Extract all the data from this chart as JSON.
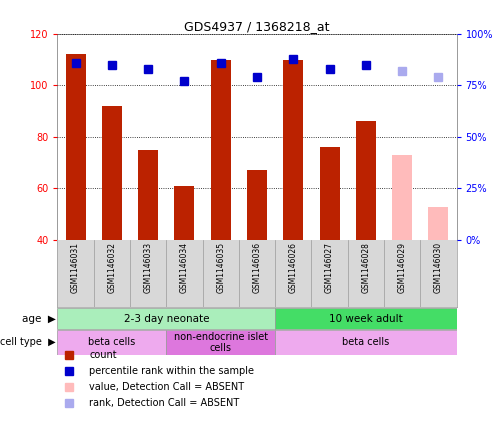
{
  "title": "GDS4937 / 1368218_at",
  "samples": [
    "GSM1146031",
    "GSM1146032",
    "GSM1146033",
    "GSM1146034",
    "GSM1146035",
    "GSM1146036",
    "GSM1146026",
    "GSM1146027",
    "GSM1146028",
    "GSM1146029",
    "GSM1146030"
  ],
  "bar_values": [
    112,
    92,
    75,
    61,
    110,
    67,
    110,
    76,
    86,
    null,
    null
  ],
  "bar_colors": [
    "#bb2200",
    "#bb2200",
    "#bb2200",
    "#bb2200",
    "#bb2200",
    "#bb2200",
    "#bb2200",
    "#bb2200",
    "#bb2200",
    null,
    null
  ],
  "absent_bar_values": [
    null,
    null,
    null,
    null,
    null,
    null,
    null,
    null,
    null,
    73,
    53
  ],
  "absent_bar_color": "#ffbbbb",
  "rank_values": [
    86,
    85,
    83,
    77,
    86,
    79,
    88,
    83,
    85,
    82,
    79
  ],
  "rank_colors": [
    "#0000cc",
    "#0000cc",
    "#0000cc",
    "#0000cc",
    "#0000cc",
    "#0000cc",
    "#0000cc",
    "#0000cc",
    "#0000cc",
    "#aaaaee",
    "#aaaaee"
  ],
  "ylim_left": [
    40,
    120
  ],
  "ylim_right": [
    0,
    100
  ],
  "yticks_left": [
    40,
    60,
    80,
    100,
    120
  ],
  "ytick_labels_left": [
    "40",
    "60",
    "80",
    "100",
    "120"
  ],
  "yticks_right_pct": [
    0,
    25,
    50,
    75,
    100
  ],
  "ytick_labels_right": [
    "0%",
    "25%",
    "50%",
    "75%",
    "100%"
  ],
  "age_groups": [
    {
      "label": "2-3 day neonate",
      "start": 0,
      "end": 6,
      "color": "#aaeebb"
    },
    {
      "label": "10 week adult",
      "start": 6,
      "end": 11,
      "color": "#44dd66"
    }
  ],
  "cell_type_groups": [
    {
      "label": "beta cells",
      "start": 0,
      "end": 3,
      "color": "#eeaaee"
    },
    {
      "label": "non-endocrine islet\ncells",
      "start": 3,
      "end": 6,
      "color": "#dd77dd"
    },
    {
      "label": "beta cells",
      "start": 6,
      "end": 11,
      "color": "#eeaaee"
    }
  ],
  "legend_items": [
    {
      "color": "#bb2200",
      "label": "count"
    },
    {
      "color": "#0000cc",
      "label": "percentile rank within the sample"
    },
    {
      "color": "#ffbbbb",
      "label": "value, Detection Call = ABSENT"
    },
    {
      "color": "#aaaaee",
      "label": "rank, Detection Call = ABSENT"
    }
  ],
  "bar_width": 0.55,
  "rank_marker_size": 6,
  "grid_color": "black",
  "grid_linestyle": ":",
  "bg_gray": "#d8d8d8"
}
